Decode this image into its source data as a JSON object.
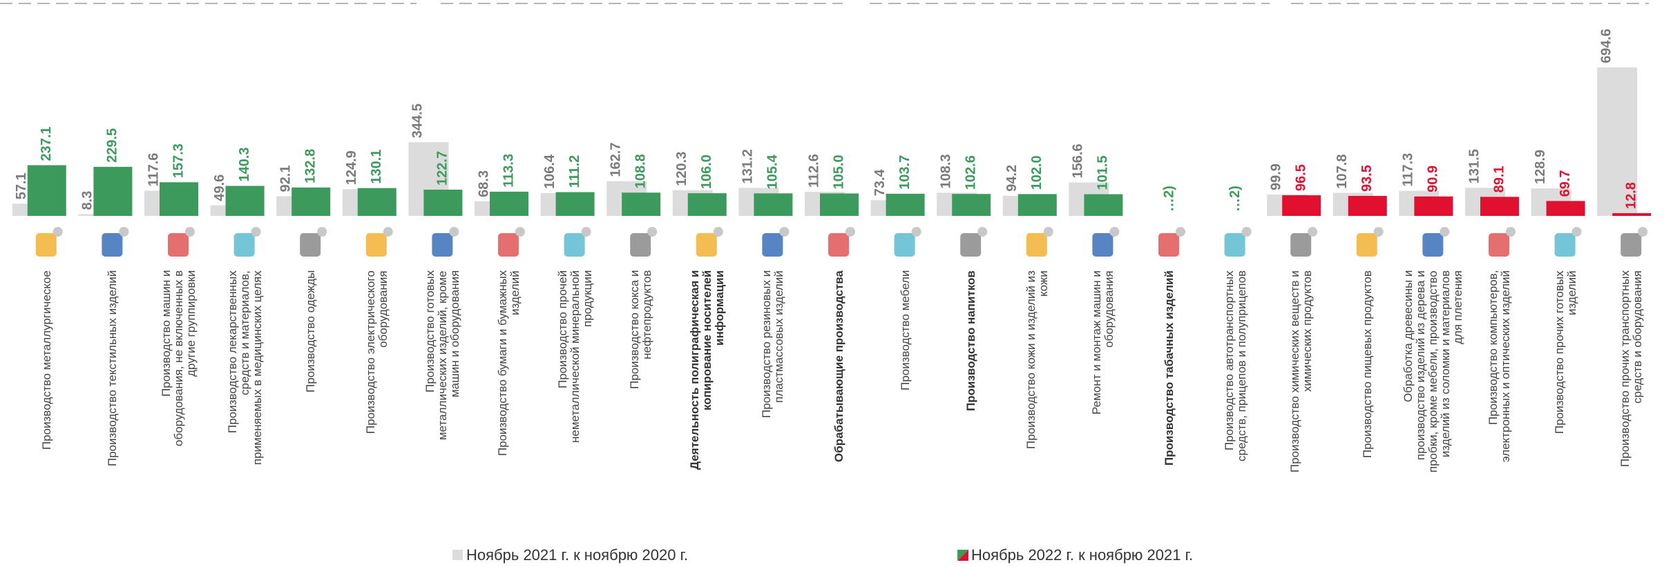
{
  "chart_data": {
    "type": "bar",
    "categories": [
      "Производство металлургическое",
      "Производство текстильных изделий",
      "Производство машин и\nоборудования, не включенных в\nдругие группировки",
      "Производство лекарственных\nсредств и материалов,\nприменяемых в медицинских целях",
      "Производство одежды",
      "Производство электрического\nоборудования",
      "Производство готовых\nметаллических изделий, кроме\nмашин и оборудования",
      "Производство бумаги и бумажных\nизделий",
      "Производство прочей\nнеметаллической минеральной\nпродукции",
      "Производство кокса и\nнефтепродуктов",
      "Деятельность полиграфическая и\nкопирование носителей\nинформации",
      "Производство резиновых и\nпластмассовых изделий",
      "Обрабатывающие производства",
      "Производство мебели",
      "Производство напитков",
      "Производство кожи и изделий из\nкожи",
      "Ремонт и монтаж машин и\nоборудования",
      "Производство табачных изделий",
      "Производство автотранспортных\nсредств, прицепов и полуприцепов",
      "Производство химических веществ и\nхимических продуктов",
      "Производство пищевых продуктов",
      "Обработка древесины и\nпроизводство изделий из дерева и\nпробки, кроме мебели, производство\nизделий из соломки и материалов\nдля плетения",
      "Производство компьютеров,\nэлектронных и оптических изделий",
      "Производство прочих готовых\nизделий",
      "Производство прочих транспортных\nсредств и оборудования"
    ],
    "bold": [
      false,
      false,
      false,
      false,
      false,
      false,
      false,
      false,
      false,
      false,
      true,
      false,
      true,
      false,
      true,
      false,
      false,
      true,
      false,
      false,
      false,
      false,
      false,
      false,
      false
    ],
    "series": [
      {
        "name": "Ноябрь 2021 г. к ноябрю 2020 г.",
        "color": "#dcdcdc",
        "label_color": "#7a7a7a",
        "values": [
          57.1,
          8.3,
          117.6,
          49.6,
          92.1,
          124.9,
          344.5,
          68.3,
          106.4,
          162.7,
          120.3,
          131.2,
          112.6,
          73.4,
          108.3,
          94.2,
          156.6,
          null,
          null,
          99.9,
          107.8,
          117.3,
          131.5,
          128.9,
          694.6
        ]
      },
      {
        "name": "Ноябрь 2022 г. к ноябрю 2021 г.",
        "colors": [
          "#3b9a5c",
          "#e2102f"
        ],
        "values": [
          237.1,
          229.5,
          157.3,
          140.3,
          132.8,
          130.1,
          122.7,
          113.3,
          111.2,
          108.8,
          106.0,
          105.4,
          105.0,
          103.7,
          102.6,
          102.0,
          101.5,
          null,
          null,
          96.5,
          93.5,
          90.9,
          89.1,
          69.7,
          12.8
        ],
        "value_labels": [
          "237.1",
          "229.5",
          "157.3",
          "140.3",
          "132.8",
          "130.1",
          "122.7",
          "113.3",
          "111.2",
          "108.8",
          "106.0",
          "105.4",
          "105.0",
          "103.7",
          "102.6",
          "102.0",
          "101.5",
          "…2)",
          "…2)",
          "96.5",
          "93.5",
          "90.9",
          "89.1",
          "69.7",
          "12.8"
        ],
        "point_colors": [
          0,
          0,
          0,
          0,
          0,
          0,
          0,
          0,
          0,
          0,
          0,
          0,
          0,
          0,
          0,
          0,
          0,
          0,
          0,
          1,
          1,
          1,
          1,
          1,
          1
        ]
      }
    ],
    "ylim": [
      0,
      700
    ]
  }
}
